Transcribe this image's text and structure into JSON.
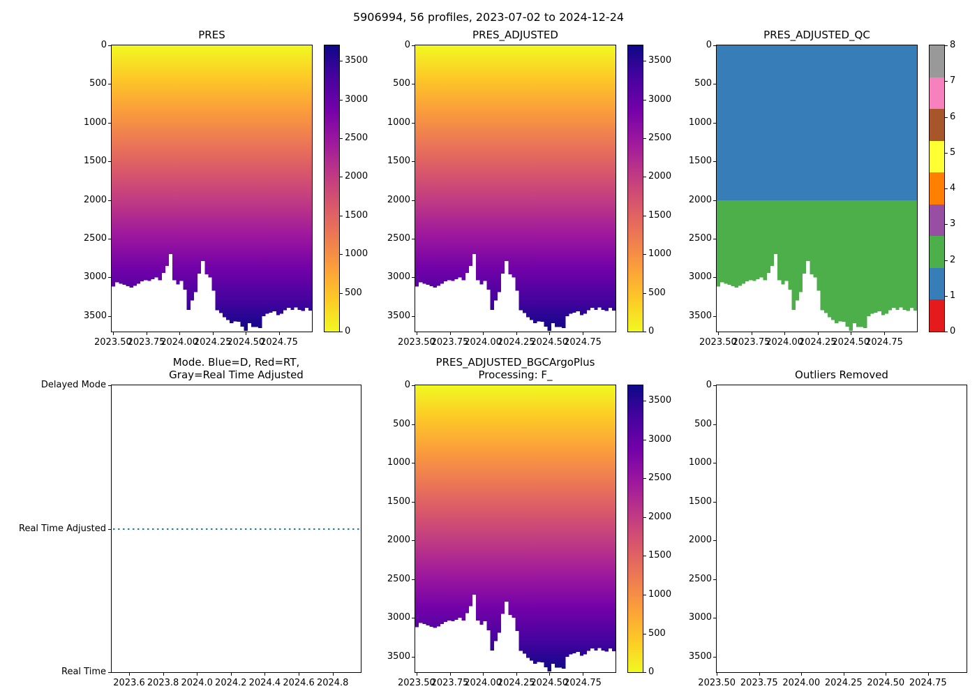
{
  "suptitle": "5906994, 56 profiles, 2023-07-02 to 2024-12-24",
  "palette": {
    "plasma_r_stops": [
      "#f0f921",
      "#fdca26",
      "#fb9f3a",
      "#ed7953",
      "#d8576b",
      "#bd3786",
      "#9c179e",
      "#7201a8",
      "#46039f",
      "#0d0887"
    ],
    "set1_bottom_to_top": [
      "#e41a1c",
      "#377eb8",
      "#4daf4a",
      "#984ea3",
      "#ff7f00",
      "#ffff33",
      "#a65628",
      "#f781bf",
      "#999999"
    ],
    "qc1_blue": "#377eb8",
    "qc2_green": "#4daf4a",
    "mode_line_blue": "#1f77b4",
    "axis_color": "#000000",
    "background": "#ffffff"
  },
  "chart_data": {
    "figure_title": "5906994, 56 profiles, 2023-07-02 to 2024-12-24",
    "n_profiles": 56,
    "time_start_years": 2023.497,
    "time_step_years": 0.0269,
    "depth_axis_max": 3700,
    "profile_max_depth_dbar": [
      3120,
      3065,
      3080,
      3095,
      3115,
      3130,
      3110,
      3080,
      3050,
      3035,
      3045,
      3025,
      3000,
      3035,
      2940,
      2850,
      2700,
      3035,
      3090,
      3045,
      3160,
      3420,
      3300,
      3190,
      2950,
      2790,
      2960,
      3000,
      3170,
      3425,
      3460,
      3515,
      3550,
      3590,
      3570,
      3575,
      3635,
      3690,
      3590,
      3640,
      3640,
      3655,
      3500,
      3470,
      3455,
      3440,
      3490,
      3470,
      3425,
      3395,
      3420,
      3390,
      3420,
      3435,
      3395,
      3430
    ],
    "qc_boundary_depth": 2000,
    "subplots": [
      {
        "type": "heatmap",
        "content": "mesh",
        "title_lines": [
          "PRES"
        ],
        "xlim": [
          2023.49,
          2024.997
        ],
        "ylim": [
          0,
          3700
        ],
        "x_ticks": [
          2023.5,
          2023.75,
          2024.0,
          2024.25,
          2024.5,
          2024.75
        ],
        "x_tick_labels": [
          "2023.50",
          "2023.75",
          "2024.00",
          "2024.25",
          "2024.50",
          "2024.75"
        ],
        "y_ticks": [
          0,
          500,
          1000,
          1500,
          2000,
          2500,
          3000,
          3500
        ],
        "y_tick_labels": [
          "0",
          "500",
          "1000",
          "1500",
          "2000",
          "2500",
          "3000",
          "3500"
        ],
        "colorbar": {
          "type": "gradient",
          "vmin": 0,
          "vmax": 3700,
          "tick_values": [
            0,
            500,
            1000,
            1500,
            2000,
            2500,
            3000,
            3500
          ],
          "tick_labels": [
            "0",
            "500",
            "1000",
            "1500",
            "2000",
            "2500",
            "3000",
            "3500"
          ]
        }
      },
      {
        "type": "heatmap",
        "content": "mesh",
        "title_lines": [
          "PRES_ADJUSTED"
        ],
        "xlim": [
          2023.49,
          2024.997
        ],
        "ylim": [
          0,
          3700
        ],
        "x_ticks": [
          2023.5,
          2023.75,
          2024.0,
          2024.25,
          2024.5,
          2024.75
        ],
        "x_tick_labels": [
          "2023.50",
          "2023.75",
          "2024.00",
          "2024.25",
          "2024.50",
          "2024.75"
        ],
        "y_ticks": [
          0,
          500,
          1000,
          1500,
          2000,
          2500,
          3000,
          3500
        ],
        "y_tick_labels": [
          "0",
          "500",
          "1000",
          "1500",
          "2000",
          "2500",
          "3000",
          "3500"
        ],
        "colorbar": {
          "type": "gradient",
          "vmin": 0,
          "vmax": 3700,
          "tick_values": [
            0,
            500,
            1000,
            1500,
            2000,
            2500,
            3000,
            3500
          ],
          "tick_labels": [
            "0",
            "500",
            "1000",
            "1500",
            "2000",
            "2500",
            "3000",
            "3500"
          ]
        }
      },
      {
        "type": "heatmap",
        "content": "qc",
        "title_lines": [
          "PRES_ADJUSTED_QC"
        ],
        "xlim": [
          2023.49,
          2024.997
        ],
        "ylim": [
          0,
          3700
        ],
        "x_ticks": [
          2023.5,
          2023.75,
          2024.0,
          2024.25,
          2024.5,
          2024.75
        ],
        "x_tick_labels": [
          "2023.50",
          "2023.75",
          "2024.00",
          "2024.25",
          "2024.50",
          "2024.75"
        ],
        "y_ticks": [
          0,
          500,
          1000,
          1500,
          2000,
          2500,
          3000,
          3500
        ],
        "y_tick_labels": [
          "0",
          "500",
          "1000",
          "1500",
          "2000",
          "2500",
          "3000",
          "3500"
        ],
        "qc_layers": [
          {
            "qc_value": 1,
            "depth_from": 0,
            "depth_to": 2000
          },
          {
            "qc_value": 2,
            "depth_from": 2000,
            "depth_to": "profile_bottom"
          }
        ],
        "colorbar": {
          "type": "discrete",
          "vmin": 0,
          "vmax": 8,
          "tick_values": [
            0,
            1,
            2,
            3,
            4,
            5,
            6,
            7,
            8
          ],
          "tick_labels": [
            "0",
            "1",
            "2",
            "3",
            "4",
            "5",
            "6",
            "7",
            "8"
          ]
        }
      },
      {
        "type": "line",
        "content": "mode",
        "title_lines": [
          "Mode. Blue=D, Red=RT,",
          "Gray=Real Time Adjusted"
        ],
        "xlim": [
          2023.497,
          2024.966
        ],
        "x_ticks": [
          2023.6,
          2023.8,
          2024.0,
          2024.2,
          2024.4,
          2024.6,
          2024.8
        ],
        "x_tick_labels": [
          "2023.6",
          "2023.8",
          "2024.0",
          "2024.2",
          "2024.4",
          "2024.6",
          "2024.8"
        ],
        "y_tick_labels": [
          "Delayed Mode",
          "Real Time Adjusted",
          "Real Time"
        ],
        "line": {
          "at_level": "Real Time Adjusted",
          "style": "dotted",
          "color": "#1f77b4"
        }
      },
      {
        "type": "heatmap",
        "content": "mesh",
        "title_lines": [
          "PRES_ADJUSTED_BGCArgoPlus",
          "Processing: F_"
        ],
        "xlim": [
          2023.49,
          2024.997
        ],
        "ylim": [
          0,
          3700
        ],
        "x_ticks": [
          2023.5,
          2023.75,
          2024.0,
          2024.25,
          2024.5,
          2024.75
        ],
        "x_tick_labels": [
          "2023.50",
          "2023.75",
          "2024.00",
          "2024.25",
          "2024.50",
          "2024.75"
        ],
        "y_ticks": [
          0,
          500,
          1000,
          1500,
          2000,
          2500,
          3000,
          3500
        ],
        "y_tick_labels": [
          "0",
          "500",
          "1000",
          "1500",
          "2000",
          "2500",
          "3000",
          "3500"
        ],
        "colorbar": {
          "type": "gradient",
          "vmin": 0,
          "vmax": 3700,
          "tick_values": [
            0,
            500,
            1000,
            1500,
            2000,
            2500,
            3000,
            3500
          ],
          "tick_labels": [
            "0",
            "500",
            "1000",
            "1500",
            "2000",
            "2500",
            "3000",
            "3500"
          ]
        }
      },
      {
        "type": "empty",
        "content": "empty",
        "title_lines": [
          "Outliers Removed"
        ],
        "xlim": [
          2023.499,
          2024.978
        ],
        "ylim": [
          0,
          3700
        ],
        "x_ticks": [
          2023.5,
          2023.75,
          2024.0,
          2024.25,
          2024.5,
          2024.75
        ],
        "x_tick_labels": [
          "2023.50",
          "2023.75",
          "2024.00",
          "2024.25",
          "2024.50",
          "2024.75"
        ],
        "y_ticks": [
          0,
          500,
          1000,
          1500,
          2000,
          2500,
          3000,
          3500
        ],
        "y_tick_labels": [
          "0",
          "500",
          "1000",
          "1500",
          "2000",
          "2500",
          "3000",
          "3500"
        ]
      }
    ]
  }
}
